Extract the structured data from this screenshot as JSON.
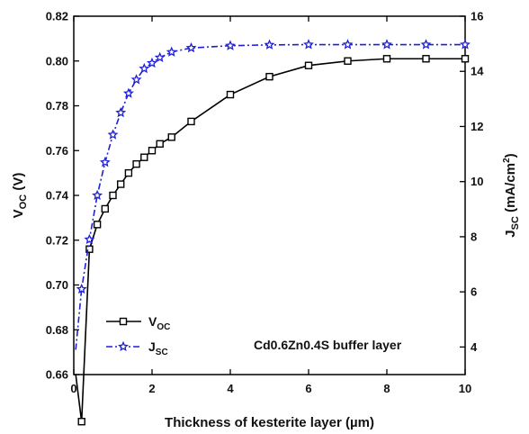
{
  "chart_data": {
    "type": "line",
    "xlabel": "Thickness of kesterite layer (µm)",
    "xlim": [
      0,
      10
    ],
    "x_ticks": [
      0,
      2,
      4,
      6,
      8,
      10
    ],
    "ylabel_left": {
      "base": "V",
      "sub": "OC",
      "unit": " (V)"
    },
    "ylim_left": [
      0.66,
      0.82
    ],
    "y_left_ticks": [
      0.66,
      0.68,
      0.7,
      0.72,
      0.74,
      0.76,
      0.78,
      0.8,
      0.82
    ],
    "ylabel_right": {
      "base": "J",
      "sub": "SC",
      "unit": " (mA/cm",
      "sup": "2",
      "close": ")"
    },
    "ylim_right": [
      3,
      16
    ],
    "y_right_ticks": [
      4,
      6,
      8,
      10,
      12,
      14,
      16
    ],
    "grid": false,
    "legend_position": "bottom-left",
    "annotation": "Cd0.6Zn0.4S buffer layer",
    "series": [
      {
        "name": {
          "base": "V",
          "sub": "OC"
        },
        "axis": "left",
        "color": "#000000",
        "marker": "square",
        "line": "solid",
        "x": [
          0.2,
          0.4,
          0.6,
          0.8,
          1.0,
          1.2,
          1.4,
          1.6,
          1.8,
          2.0,
          2.2,
          2.5,
          3.0,
          4.0,
          5.0,
          6.0,
          7.0,
          8.0,
          9.0,
          10.0
        ],
        "values": [
          0.639,
          0.716,
          0.727,
          0.734,
          0.74,
          0.745,
          0.75,
          0.754,
          0.757,
          0.76,
          0.763,
          0.766,
          0.773,
          0.785,
          0.793,
          0.798,
          0.8,
          0.801,
          0.801,
          0.801
        ]
      },
      {
        "name": {
          "base": "J",
          "sub": "SC"
        },
        "axis": "right",
        "color": "#1f1fd6",
        "marker": "star",
        "line": "dash-dot",
        "x": [
          0.2,
          0.4,
          0.6,
          0.8,
          1.0,
          1.2,
          1.4,
          1.6,
          1.8,
          2.0,
          2.2,
          2.5,
          3.0,
          4.0,
          5.0,
          6.0,
          7.0,
          8.0,
          9.0,
          10.0
        ],
        "values": [
          6.1,
          7.9,
          9.5,
          10.7,
          11.7,
          12.5,
          13.2,
          13.7,
          14.1,
          14.3,
          14.5,
          14.7,
          14.85,
          14.93,
          14.96,
          14.97,
          14.97,
          14.97,
          14.97,
          14.97
        ]
      }
    ]
  }
}
